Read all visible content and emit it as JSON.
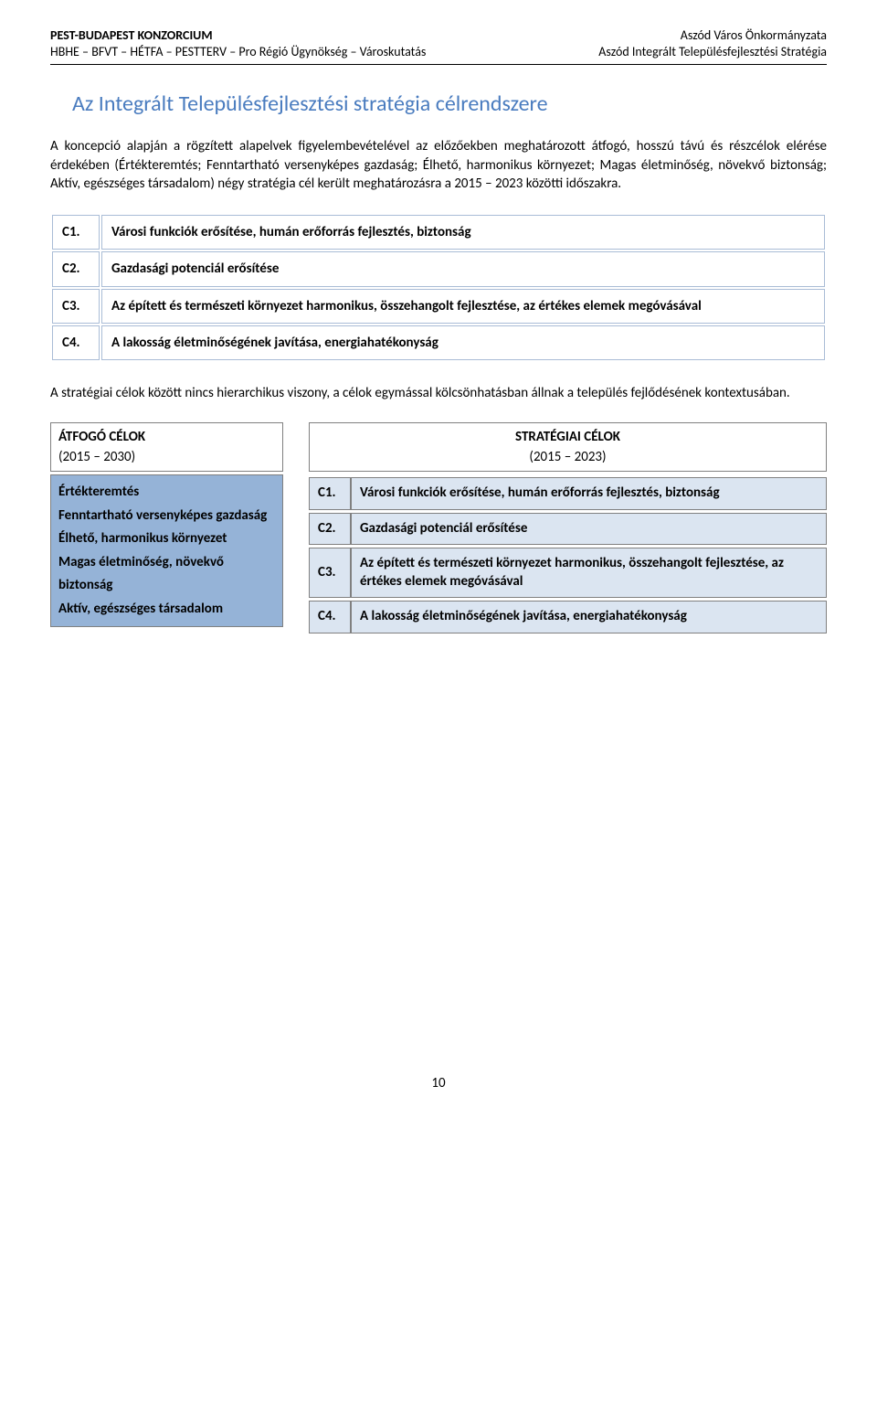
{
  "header": {
    "left_line1": "PEST-BUDAPEST KONZORCIUM",
    "left_line2": "HBHE – BFVT – HÉTFA – PESTTERV – Pro Régió Ügynökség – Városkutatás",
    "right_line1": "Aszód Város Önkormányzata",
    "right_line2": "Aszód Integrált Településfejlesztési Stratégia"
  },
  "title": "Az Integrált Településfejlesztési stratégia célrendszere",
  "para1": "A koncepció alapján a rögzített alapelvek figyelembevételével az előzőekben meghatározott átfogó, hosszú távú és részcélok elérése érdekében (Értékteremtés; Fenntartható versenyképes gazdaság; Élhető, harmonikus környezet; Magas életminőség, növekvő biztonság; Aktív, egészséges társadalom) négy stratégia cél került meghatározásra a 2015 – 2023 közötti időszakra.",
  "goals": [
    {
      "code": "C1.",
      "text": "Városi funkciók erősítése, humán erőforrás fejlesztés, biztonság"
    },
    {
      "code": "C2.",
      "text": "Gazdasági potenciál erősítése"
    },
    {
      "code": "C3.",
      "text": "Az épített és természeti környezet harmonikus, összehangolt fejlesztése, az értékes elemek megóvásával"
    },
    {
      "code": "C4.",
      "text": "A lakosság életminőségének javítása, energiahatékonyság"
    }
  ],
  "para2": "A stratégiai célok között nincs hierarchikus viszony, a célok egymással kölcsönhatásban állnak a település fejlődésének kontextusában.",
  "atfogo": {
    "header_title": "ÁTFOGÓ CÉLOK",
    "header_years": "(2015 – 2030)",
    "items": [
      "Értékteremtés",
      "Fenntartható versenyképes gazdaság",
      "Élhető, harmonikus környezet",
      "Magas életminőség, növekvő biztonság",
      "Aktív, egészséges társadalom"
    ]
  },
  "strat": {
    "header_title": "STRATÉGIAI CÉLOK",
    "header_years": "(2015 – 2023)"
  },
  "page_number": "10",
  "colors": {
    "title_color": "#4a7cbf",
    "cell_border1": "#a9bcd6",
    "atfogo_bg": "#95b3d7",
    "strat_bg": "#dbe5f1",
    "box_border": "#808080"
  }
}
